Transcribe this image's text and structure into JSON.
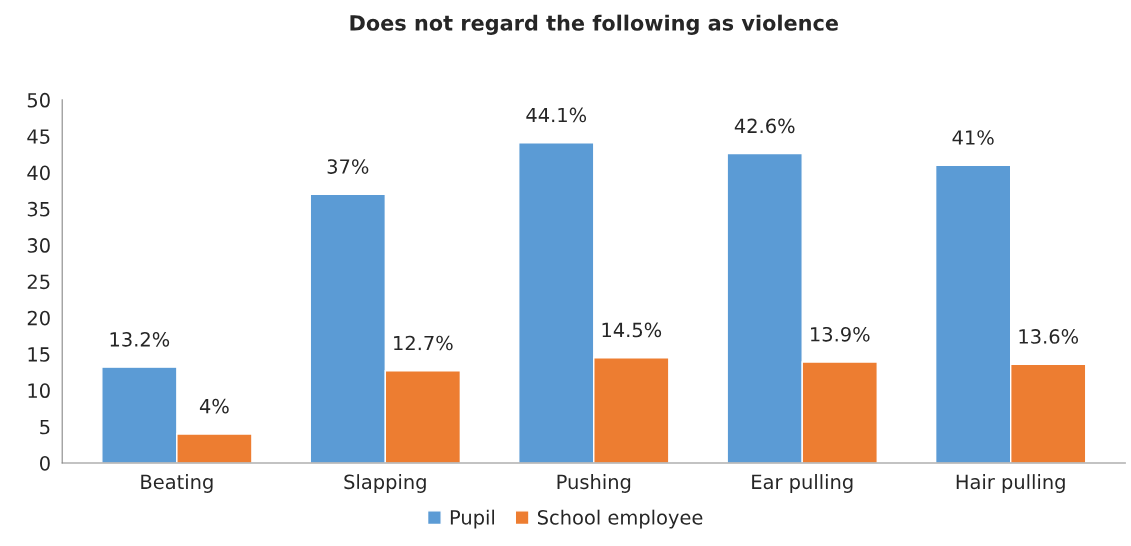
{
  "chart_data": {
    "type": "bar",
    "title": "Does not regard the following as violence",
    "categories": [
      "Beating",
      "Slapping",
      "Pushing",
      "Ear pulling",
      "Hair pulling"
    ],
    "series": [
      {
        "name": "Pupil",
        "color": "#5b9bd5",
        "values": [
          13.2,
          37,
          44.1,
          42.6,
          41
        ],
        "value_labels": [
          "13.2%",
          "37%",
          "44.1%",
          "42.6%",
          "41%"
        ]
      },
      {
        "name": "School employee",
        "color": "#ed7d31",
        "values": [
          4,
          12.7,
          14.5,
          13.9,
          13.6
        ],
        "value_labels": [
          "4%",
          "12.7%",
          "14.5%",
          "13.9%",
          "13.6%"
        ]
      }
    ],
    "ylim": [
      0,
      50
    ],
    "yticks": [
      0,
      5,
      10,
      15,
      20,
      25,
      30,
      35,
      40,
      45,
      50
    ],
    "grid": false,
    "legend": "bottom"
  }
}
